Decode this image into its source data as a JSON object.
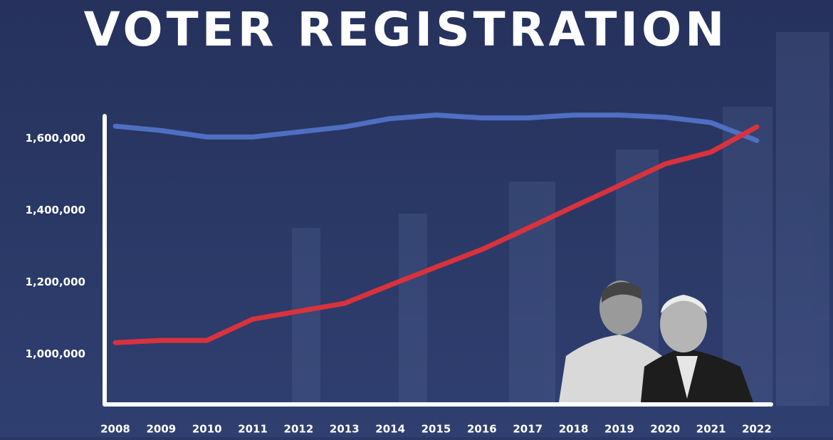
{
  "chart_data": {
    "type": "line",
    "title": "VOTER REGISTRATION",
    "categories": [
      "2008",
      "2009",
      "2010",
      "2011",
      "2012",
      "2013",
      "2014",
      "2015",
      "2016",
      "2017",
      "2018",
      "2019",
      "2020",
      "2021",
      "2022"
    ],
    "series": [
      {
        "color": "#4f6fc2",
        "values": [
          1634000,
          1622000,
          1604000,
          1604000,
          1618000,
          1632000,
          1655000,
          1665000,
          1657000,
          1657000,
          1665000,
          1665000,
          1659000,
          1644000,
          1594000
        ]
      },
      {
        "color": "#d8323d",
        "values": [
          1032000,
          1038000,
          1038000,
          1097000,
          1119000,
          1141000,
          1192000,
          1242000,
          1291000,
          1350000,
          1410000,
          1469000,
          1529000,
          1562000,
          1632000
        ]
      }
    ],
    "ylim": [
      860000,
      1680000
    ],
    "yticks": [
      {
        "value": 1000000,
        "label": "1,000,000"
      },
      {
        "value": 1200000,
        "label": "1,200,000"
      },
      {
        "value": 1400000,
        "label": "1,400,000"
      },
      {
        "value": 1600000,
        "label": "1,600,000"
      }
    ],
    "grid": false
  }
}
